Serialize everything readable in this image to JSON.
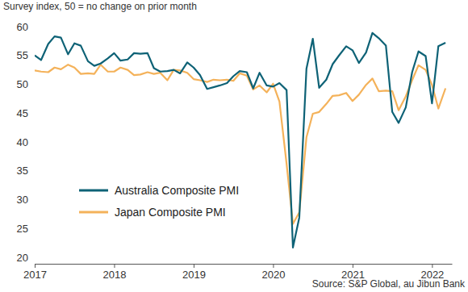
{
  "chart_data": {
    "type": "line",
    "ylabel": "Survey index, 50 = no change on prior month",
    "source": "Source: S&P Global, au Jibun Bank",
    "x": [
      2017.0,
      2017.08,
      2017.17,
      2017.25,
      2017.33,
      2017.42,
      2017.5,
      2017.58,
      2017.67,
      2017.75,
      2017.83,
      2017.92,
      2018.0,
      2018.08,
      2018.17,
      2018.25,
      2018.33,
      2018.42,
      2018.5,
      2018.58,
      2018.67,
      2018.75,
      2018.83,
      2018.92,
      2019.0,
      2019.08,
      2019.17,
      2019.25,
      2019.33,
      2019.42,
      2019.5,
      2019.58,
      2019.67,
      2019.75,
      2019.83,
      2019.92,
      2020.0,
      2020.08,
      2020.17,
      2020.25,
      2020.33,
      2020.42,
      2020.5,
      2020.58,
      2020.67,
      2020.75,
      2020.83,
      2020.92,
      2021.0,
      2021.08,
      2021.17,
      2021.25,
      2021.33,
      2021.42,
      2021.5,
      2021.58,
      2021.67,
      2021.75,
      2021.83,
      2021.92,
      2022.0,
      2022.08,
      2022.17
    ],
    "series": [
      {
        "name": "Australia Composite PMI",
        "color": "#0e6276",
        "values": [
          55.0,
          54.2,
          57.0,
          58.3,
          58.1,
          55.2,
          57.1,
          56.7,
          54.0,
          53.2,
          53.6,
          54.5,
          55.4,
          54.1,
          54.3,
          55.4,
          55.3,
          55.4,
          52.8,
          52.2,
          52.3,
          52.5,
          51.9,
          53.8,
          52.9,
          51.6,
          49.2,
          49.5,
          49.8,
          50.2,
          51.4,
          52.3,
          52.1,
          49.3,
          52.0,
          49.8,
          49.6,
          50.2,
          49.0,
          21.7,
          26.9,
          52.7,
          57.9,
          49.4,
          50.8,
          53.5,
          55.0,
          56.6,
          55.9,
          53.7,
          55.5,
          58.9,
          58.0,
          56.7,
          45.2,
          43.3,
          46.0,
          52.1,
          55.7,
          54.9,
          46.7,
          56.6,
          57.2
        ]
      },
      {
        "name": "Japan Composite PMI",
        "color": "#f4b25a",
        "values": [
          52.4,
          52.2,
          52.1,
          52.9,
          52.6,
          53.4,
          52.9,
          51.8,
          51.9,
          51.8,
          53.4,
          52.2,
          52.2,
          52.9,
          52.5,
          51.6,
          51.7,
          52.1,
          51.8,
          52.0,
          50.7,
          52.5,
          52.4,
          52.0,
          50.9,
          50.7,
          50.4,
          50.8,
          50.7,
          50.8,
          50.6,
          51.9,
          51.5,
          49.1,
          49.8,
          48.6,
          50.1,
          47.0,
          36.2,
          25.8,
          27.8,
          40.8,
          44.9,
          45.2,
          46.6,
          48.0,
          48.1,
          48.5,
          47.1,
          48.2,
          49.9,
          51.0,
          48.8,
          48.9,
          48.8,
          45.5,
          47.9,
          50.7,
          53.3,
          52.5,
          49.9,
          45.8,
          49.3
        ]
      }
    ],
    "xlim": [
      2017,
      2022.25
    ],
    "xticks": [
      2017,
      2018,
      2019,
      2020,
      2021,
      2022
    ],
    "ylim": [
      20,
      60
    ],
    "yticks": [
      20,
      25,
      30,
      35,
      40,
      45,
      50,
      55,
      60
    ],
    "grid": false,
    "legend": "bottom-left"
  }
}
